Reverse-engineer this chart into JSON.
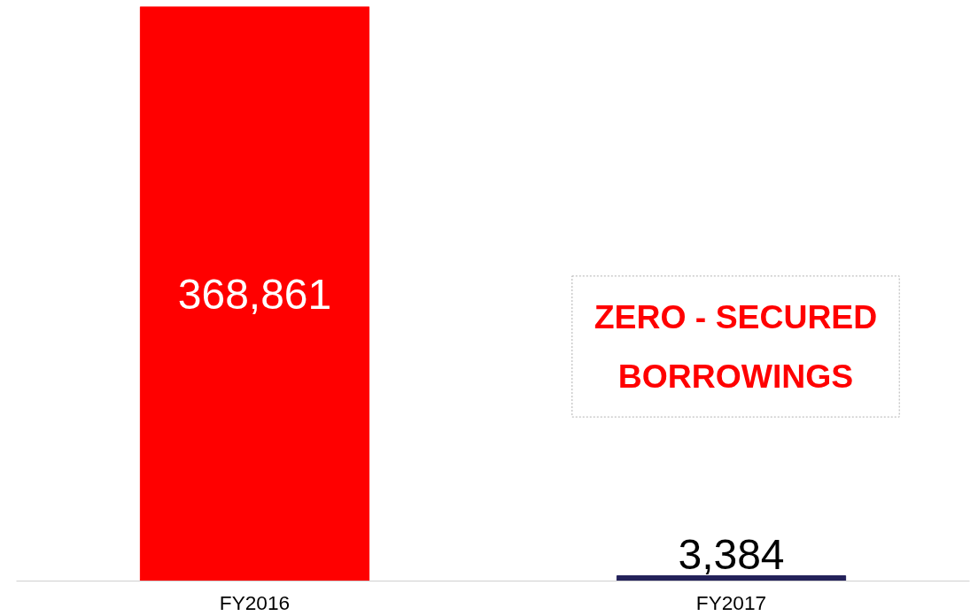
{
  "chart_data": {
    "type": "bar",
    "categories": [
      "FY2016",
      "FY2017"
    ],
    "values": [
      368861,
      3384
    ],
    "colors": [
      "#ff0000",
      "#24225a"
    ],
    "value_labels": [
      "368,861",
      "3,384"
    ],
    "annotations": [
      "ZERO - SECURED\nBORROWINGS"
    ],
    "grid": false
  }
}
